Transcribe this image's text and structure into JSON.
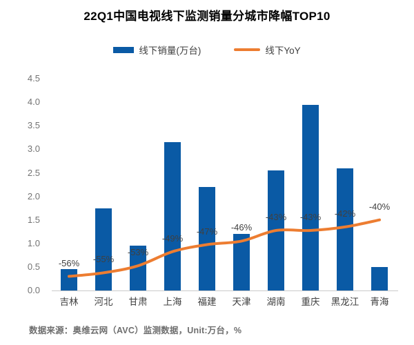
{
  "title": "22Q1中国电视线下监测销量分城市降幅TOP10",
  "legend": {
    "bar_label": "线下销量(万台)",
    "line_label": "线下YoY"
  },
  "footer": "数据来源：奥维云网（AVC）监测数据，Unit:万台，%",
  "colors": {
    "bar": "#0a5aa5",
    "line": "#ed7d31",
    "axis_line": "#c9c9c9",
    "tick_text": "#737373",
    "label_text": "#404040",
    "title_text": "#000000",
    "footer_text": "#6e6e6e"
  },
  "chart_data": {
    "type": "bar",
    "subtype": "combo-bar-line",
    "title": "22Q1中国电视线下监测销量分城市降幅TOP10",
    "categories": [
      "吉林",
      "河北",
      "甘肃",
      "上海",
      "福建",
      "天津",
      "湖南",
      "重庆",
      "黑龙江",
      "青海"
    ],
    "series": [
      {
        "name": "线下销量(万台)",
        "type": "bar",
        "unit": "万台",
        "values": [
          0.45,
          1.75,
          0.95,
          3.15,
          2.2,
          1.2,
          2.55,
          3.95,
          2.6,
          0.5
        ]
      },
      {
        "name": "线下YoY",
        "type": "line",
        "unit": "%",
        "values_pct": [
          -56,
          -55,
          -53,
          -49,
          -47,
          -46,
          -43,
          -43,
          -42,
          -40
        ],
        "labels": [
          "-56%",
          "-55%",
          "-53%",
          "-49%",
          "-47%",
          "-46%",
          "-43%",
          "-43%",
          "-42%",
          "-40%"
        ]
      }
    ],
    "ylim": [
      0,
      4.5
    ],
    "yticks": [
      "0.0",
      "0.5",
      "1.0",
      "1.5",
      "2.0",
      "2.5",
      "3.0",
      "3.5",
      "4.0",
      "4.5"
    ],
    "grid": false,
    "legend_position": "top",
    "xlabel": "",
    "ylabel": ""
  }
}
